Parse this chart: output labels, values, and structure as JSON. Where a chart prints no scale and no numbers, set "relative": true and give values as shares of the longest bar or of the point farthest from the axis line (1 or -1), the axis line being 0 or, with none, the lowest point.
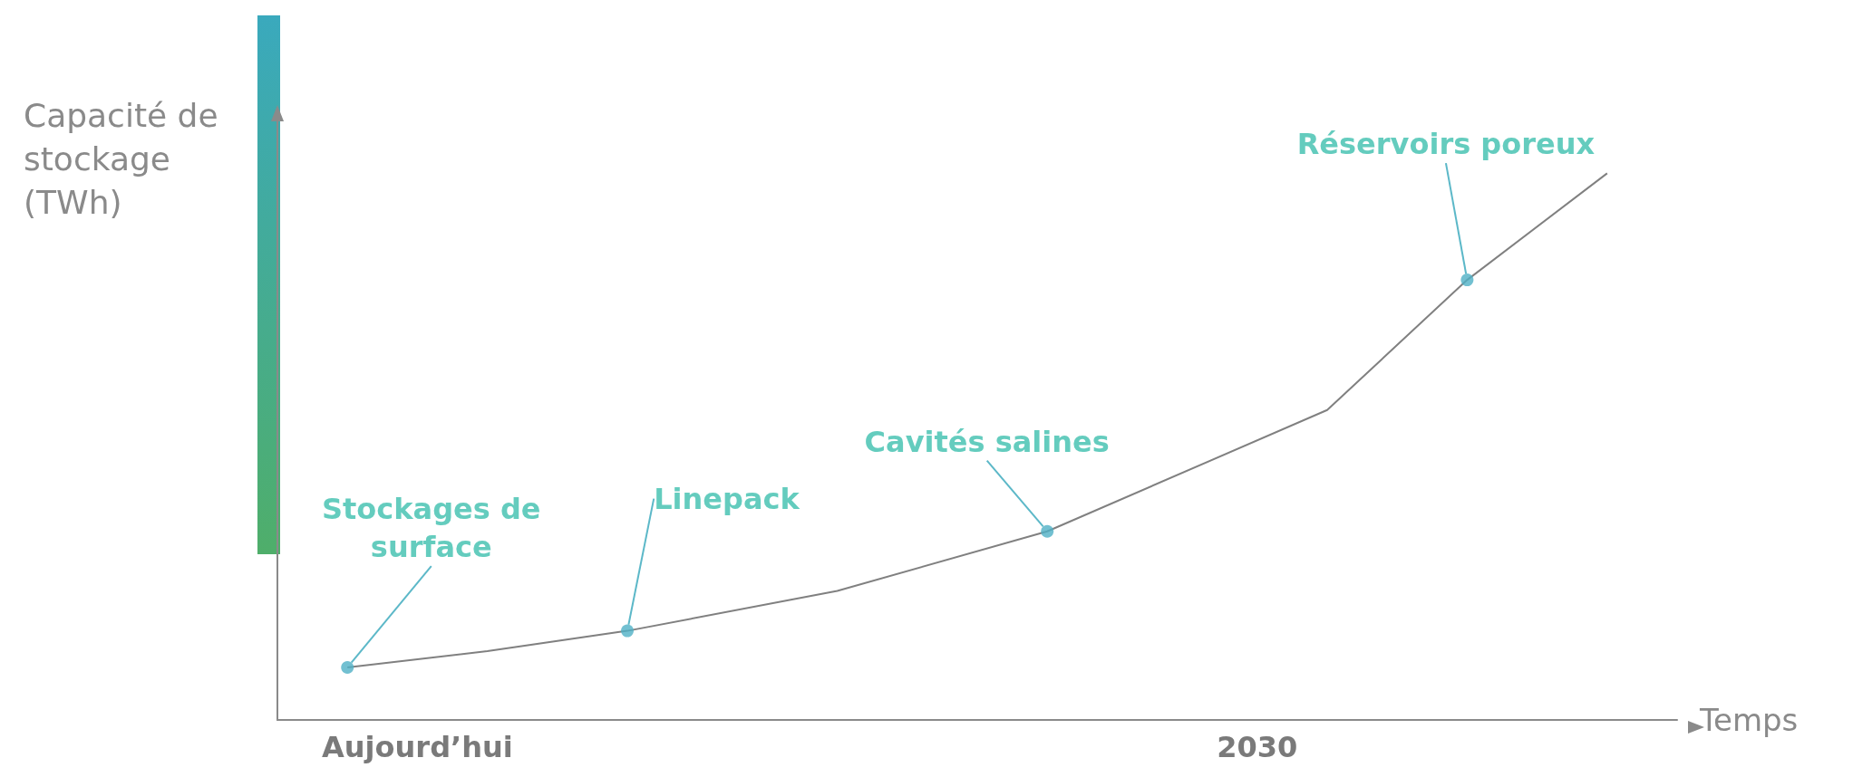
{
  "chart_data": {
    "type": "line",
    "relative": true,
    "xlabel": "Temps",
    "ylabel": "Capacité de\nstockage\n(TWh)",
    "categories": [
      null,
      null,
      "Aujourd’hui",
      null,
      null,
      null,
      null,
      null,
      null,
      null,
      null,
      null,
      null,
      null,
      "2030",
      null,
      null,
      null,
      null,
      null,
      null
    ],
    "series": [
      {
        "color": "#808080",
        "marker": "none",
        "values": [
          null,
          0.096,
          null,
          0.126,
          null,
          0.163,
          null,
          null,
          0.236,
          null,
          null,
          0.345,
          null,
          null,
          null,
          0.567,
          null,
          0.805,
          null,
          1,
          null
        ]
      },
      {
        "type": "scatter",
        "color": "#4fb0c6",
        "marker": "circle",
        "values": [
          null,
          0.096,
          null,
          null,
          null,
          0.163,
          null,
          null,
          null,
          null,
          null,
          0.345,
          null,
          null,
          null,
          null,
          null,
          0.805,
          null,
          null,
          null
        ]
      }
    ],
    "annotations": [
      "Stockages de\nsurface",
      "Linepack",
      "Cavités salines",
      "Réservoirs poreux"
    ],
    "grid": false
  }
}
